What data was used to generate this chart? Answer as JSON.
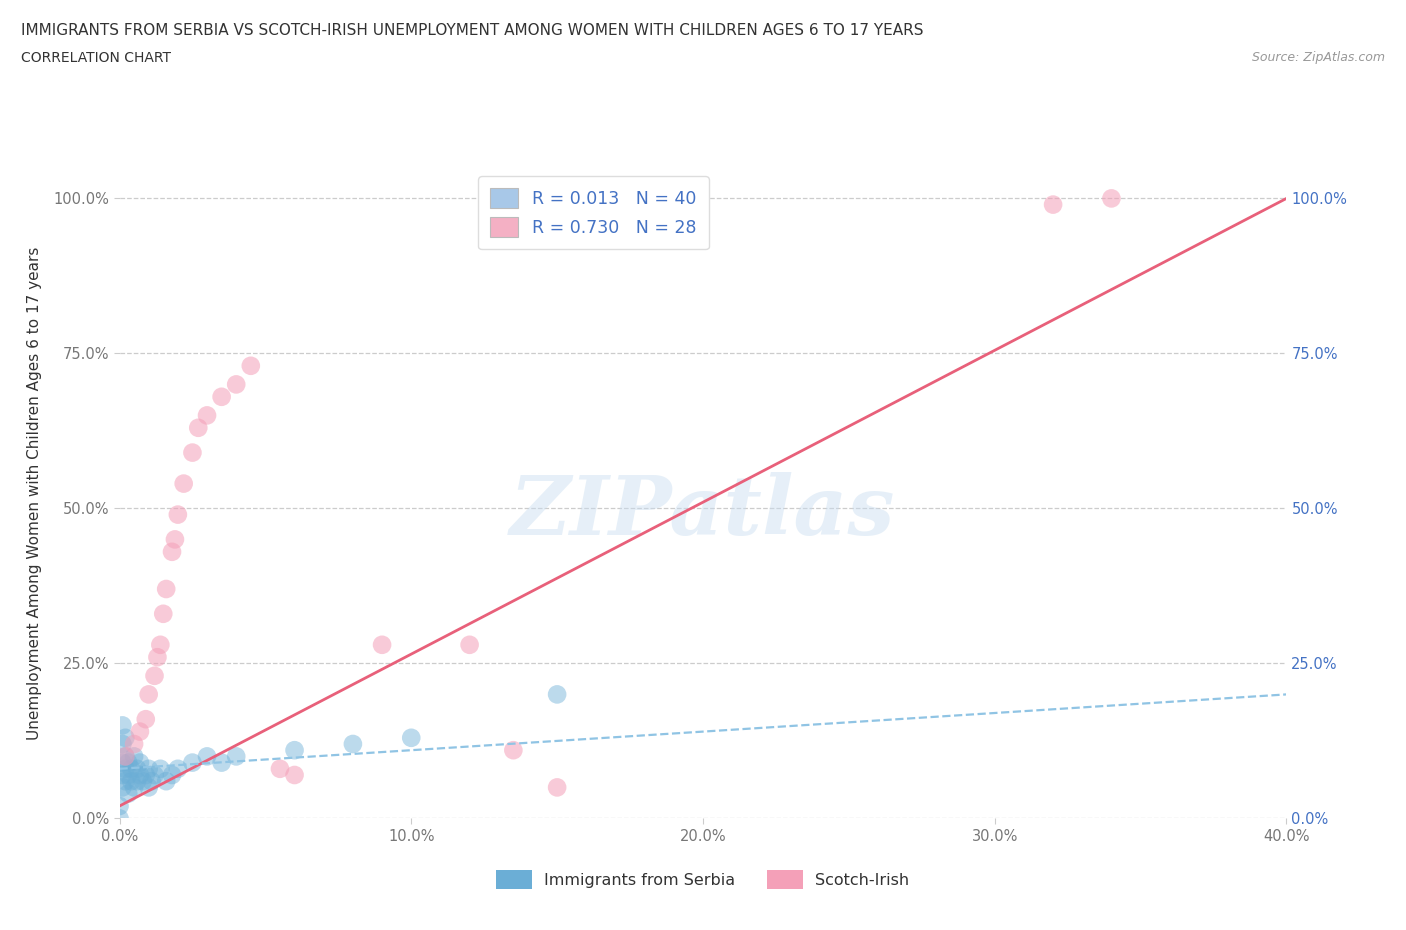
{
  "title": "IMMIGRANTS FROM SERBIA VS SCOTCH-IRISH UNEMPLOYMENT AMONG WOMEN WITH CHILDREN AGES 6 TO 17 YEARS",
  "subtitle": "CORRELATION CHART",
  "source": "Source: ZipAtlas.com",
  "ylabel": "Unemployment Among Women with Children Ages 6 to 17 years",
  "xlim": [
    0.0,
    0.4
  ],
  "ylim": [
    0.0,
    1.05
  ],
  "yticks": [
    0.0,
    0.25,
    0.5,
    0.75,
    1.0
  ],
  "ytick_labels": [
    "0.0%",
    "25.0%",
    "50.0%",
    "75.0%",
    "100.0%"
  ],
  "xticks": [
    0.0,
    0.1,
    0.2,
    0.3,
    0.4
  ],
  "xtick_labels": [
    "0.0%",
    "10.0%",
    "20.0%",
    "30.0%",
    "40.0%"
  ],
  "serbia_color": "#6baed6",
  "serbia_alpha": 0.45,
  "scotch_color": "#f4a0b8",
  "scotch_alpha": 0.55,
  "serbia_line_color": "#90c4e4",
  "scotch_line_color": "#e8607a",
  "watermark_text": "ZIPatlas",
  "watermark_color": "#c8ddf0",
  "background_color": "#ffffff",
  "grid_color": "#cccccc",
  "title_color": "#333333",
  "axis_label_color": "#777777",
  "right_axis_color": "#4472c4",
  "legend_serbia_color": "#a8c8e8",
  "legend_scotch_color": "#f4b0c4",
  "legend_text_color": "#4472c4",
  "serbia_x": [
    0.0,
    0.0,
    0.001,
    0.001,
    0.001,
    0.001,
    0.001,
    0.002,
    0.002,
    0.002,
    0.002,
    0.003,
    0.003,
    0.003,
    0.004,
    0.004,
    0.005,
    0.005,
    0.006,
    0.006,
    0.007,
    0.007,
    0.008,
    0.009,
    0.01,
    0.01,
    0.011,
    0.012,
    0.014,
    0.016,
    0.018,
    0.02,
    0.025,
    0.03,
    0.035,
    0.04,
    0.06,
    0.08,
    0.1,
    0.15
  ],
  "serbia_y": [
    0.0,
    0.02,
    0.05,
    0.07,
    0.09,
    0.12,
    0.15,
    0.06,
    0.08,
    0.1,
    0.13,
    0.04,
    0.07,
    0.09,
    0.06,
    0.08,
    0.05,
    0.1,
    0.06,
    0.08,
    0.07,
    0.09,
    0.06,
    0.07,
    0.05,
    0.08,
    0.06,
    0.07,
    0.08,
    0.06,
    0.07,
    0.08,
    0.09,
    0.1,
    0.09,
    0.1,
    0.11,
    0.12,
    0.13,
    0.2
  ],
  "scotch_x": [
    0.002,
    0.005,
    0.007,
    0.009,
    0.01,
    0.012,
    0.013,
    0.014,
    0.015,
    0.016,
    0.018,
    0.019,
    0.02,
    0.022,
    0.025,
    0.027,
    0.03,
    0.035,
    0.04,
    0.045,
    0.055,
    0.06,
    0.09,
    0.12,
    0.135,
    0.15,
    0.32,
    0.34
  ],
  "scotch_y": [
    0.1,
    0.12,
    0.14,
    0.16,
    0.2,
    0.23,
    0.26,
    0.28,
    0.33,
    0.37,
    0.43,
    0.45,
    0.49,
    0.54,
    0.59,
    0.63,
    0.65,
    0.68,
    0.7,
    0.73,
    0.08,
    0.07,
    0.28,
    0.28,
    0.11,
    0.05,
    0.99,
    1.0
  ],
  "scotch_line_x0": 0.0,
  "scotch_line_y0": 0.02,
  "scotch_line_x1": 0.4,
  "scotch_line_y1": 1.0,
  "serbia_line_y_at_0": 0.08,
  "serbia_line_y_at_40": 0.2
}
